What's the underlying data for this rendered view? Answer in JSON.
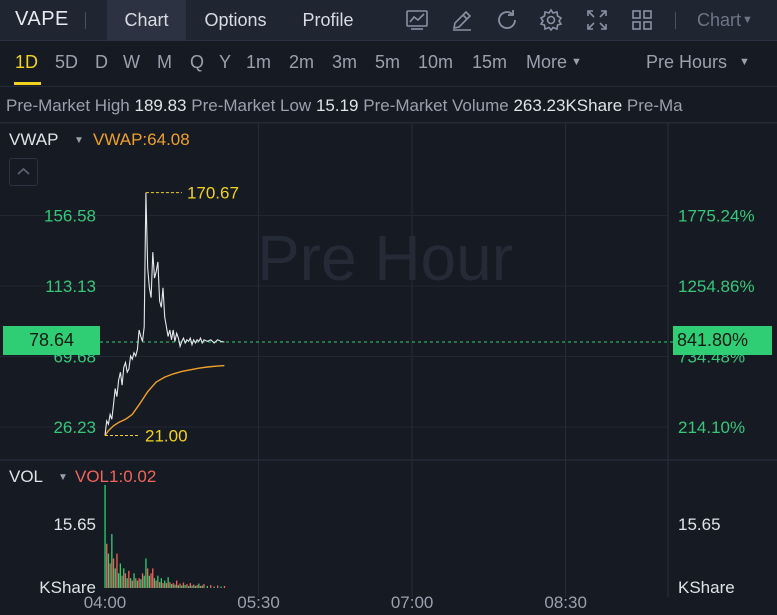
{
  "topbar": {
    "ticker": "VAPE",
    "nav": [
      "Chart",
      "Options",
      "Profile"
    ],
    "active_nav": "Chart",
    "tool_icons": [
      "line-chart-icon",
      "draw-icon",
      "refresh-icon",
      "settings-icon",
      "fullscreen-icon",
      "grid-layout-icon"
    ],
    "chart_menu_label": "Chart"
  },
  "periods": {
    "items": [
      "1D",
      "5D",
      "D",
      "W",
      "M",
      "Q",
      "Y",
      "1m",
      "2m",
      "3m",
      "5m",
      "10m",
      "15m",
      "More"
    ],
    "active": "1D",
    "session": "Pre Hours"
  },
  "marquee": [
    {
      "label": "Pre-Market High",
      "value": "189.83"
    },
    {
      "label": "Pre-Market Low",
      "value": "15.19"
    },
    {
      "label": "Pre-Market Volume",
      "value": "263.23KShare"
    },
    {
      "label": "Pre-Ma",
      "value": ""
    }
  ],
  "indicators": {
    "vwap_name": "VWAP",
    "vwap_value": "VWAP:64.08",
    "vol_name": "VOL",
    "vol_value": "VOL1:0.02"
  },
  "watermark": "Pre Hour",
  "colors": {
    "accent": "#f3d21f",
    "up": "#2fce74",
    "down": "#f0645a",
    "vwap": "#f0a02a",
    "price_line": "#e6e8ec"
  },
  "chart_data": {
    "type": "line",
    "price_axis": {
      "ticks": [
        "156.58",
        "113.13",
        "69.68",
        "26.23"
      ],
      "tick_values": [
        156.58,
        113.13,
        69.68,
        26.23
      ],
      "range": [
        9,
        192
      ]
    },
    "pct_axis": {
      "ticks": [
        "1775.24%",
        "1254.86%",
        "734.48%",
        "214.10%"
      ]
    },
    "current": {
      "price": "78.64",
      "price_value": 78.64,
      "pct": "841.80%"
    },
    "markers": {
      "high": "170.67",
      "high_value": 170.67,
      "low": "21.00",
      "low_value": 21.0
    },
    "x_axis": {
      "ticks": [
        "04:00",
        "05:30",
        "07:00",
        "08:30"
      ],
      "tick_minutes": [
        240,
        330,
        420,
        510
      ],
      "range_minutes": [
        240,
        570
      ]
    },
    "series": [
      {
        "name": "VWAP",
        "kind": "price",
        "minutes": [
          240,
          242,
          245,
          248,
          252,
          256,
          260,
          265,
          270,
          275,
          280,
          285,
          290,
          295,
          300,
          305,
          310
        ],
        "values": [
          21,
          24,
          27,
          29,
          31,
          34,
          40,
          48,
          54,
          57,
          59,
          60.5,
          61.5,
          62.5,
          63.2,
          63.7,
          64.1
        ]
      },
      {
        "kind": "price",
        "minutes": [
          240,
          241,
          242,
          243,
          244,
          245,
          246,
          247,
          248,
          249,
          250,
          251,
          252,
          253,
          254,
          255,
          256,
          257,
          258,
          259,
          260,
          261,
          262,
          263,
          264,
          265,
          266,
          267,
          268,
          269,
          270,
          271,
          272,
          273,
          274,
          275,
          276,
          277,
          278,
          279,
          280,
          281,
          282,
          283,
          284,
          285,
          286,
          287,
          288,
          289,
          290,
          291,
          292,
          293,
          294,
          295,
          296,
          297,
          298,
          300,
          302,
          304,
          306,
          308,
          310
        ],
        "values": [
          21,
          30,
          28,
          34,
          31,
          40,
          50,
          45,
          55,
          60,
          52,
          63,
          66,
          60,
          62,
          70,
          68,
          72,
          70,
          74,
          86,
          82,
          79,
          88,
          170.67,
          124,
          112,
          106,
          134,
          118,
          122,
          128,
          104,
          100,
          112,
          94,
          88,
          82,
          86,
          80,
          86,
          79,
          84,
          81,
          76,
          79,
          81,
          78,
          80,
          79,
          81,
          77,
          80,
          78,
          80,
          79,
          81,
          78,
          80,
          79,
          80,
          78,
          80,
          79,
          78.64
        ]
      }
    ],
    "volume": {
      "axis_ticks": [
        "15.65",
        "KShare"
      ],
      "range": [
        0,
        22
      ],
      "bars": [
        {
          "minute": 240,
          "value": 21,
          "dir": "up"
        },
        {
          "minute": 241,
          "value": 9,
          "dir": "down"
        },
        {
          "minute": 242,
          "value": 7,
          "dir": "up"
        },
        {
          "minute": 243,
          "value": 5,
          "dir": "down"
        },
        {
          "minute": 244,
          "value": 11,
          "dir": "up"
        },
        {
          "minute": 245,
          "value": 6,
          "dir": "down"
        },
        {
          "minute": 246,
          "value": 4,
          "dir": "up"
        },
        {
          "minute": 247,
          "value": 7,
          "dir": "down"
        },
        {
          "minute": 248,
          "value": 3,
          "dir": "up"
        },
        {
          "minute": 249,
          "value": 5,
          "dir": "up"
        },
        {
          "minute": 250,
          "value": 2.5,
          "dir": "down"
        },
        {
          "minute": 251,
          "value": 4,
          "dir": "up"
        },
        {
          "minute": 252,
          "value": 3,
          "dir": "down"
        },
        {
          "minute": 253,
          "value": 2,
          "dir": "up"
        },
        {
          "minute": 254,
          "value": 3.5,
          "dir": "down"
        },
        {
          "minute": 255,
          "value": 2,
          "dir": "up"
        },
        {
          "minute": 256,
          "value": 1.5,
          "dir": "down"
        },
        {
          "minute": 257,
          "value": 3,
          "dir": "up"
        },
        {
          "minute": 258,
          "value": 2,
          "dir": "down"
        },
        {
          "minute": 259,
          "value": 1.5,
          "dir": "up"
        },
        {
          "minute": 260,
          "value": 2,
          "dir": "down"
        },
        {
          "minute": 261,
          "value": 1.8,
          "dir": "up"
        },
        {
          "minute": 262,
          "value": 3,
          "dir": "down"
        },
        {
          "minute": 263,
          "value": 2.5,
          "dir": "up"
        },
        {
          "minute": 264,
          "value": 6,
          "dir": "up"
        },
        {
          "minute": 265,
          "value": 4,
          "dir": "down"
        },
        {
          "minute": 266,
          "value": 2.5,
          "dir": "up"
        },
        {
          "minute": 267,
          "value": 3,
          "dir": "down"
        },
        {
          "minute": 268,
          "value": 4,
          "dir": "down"
        },
        {
          "minute": 269,
          "value": 2,
          "dir": "up"
        },
        {
          "minute": 270,
          "value": 1.5,
          "dir": "down"
        },
        {
          "minute": 271,
          "value": 2.5,
          "dir": "up"
        },
        {
          "minute": 272,
          "value": 1.2,
          "dir": "down"
        },
        {
          "minute": 273,
          "value": 2,
          "dir": "up"
        },
        {
          "minute": 274,
          "value": 1,
          "dir": "down"
        },
        {
          "minute": 275,
          "value": 1.5,
          "dir": "up"
        },
        {
          "minute": 276,
          "value": 1,
          "dir": "down"
        },
        {
          "minute": 277,
          "value": 2.2,
          "dir": "up"
        },
        {
          "minute": 278,
          "value": 1.2,
          "dir": "down"
        },
        {
          "minute": 279,
          "value": 0.8,
          "dir": "up"
        },
        {
          "minute": 280,
          "value": 1,
          "dir": "down"
        },
        {
          "minute": 281,
          "value": 0.7,
          "dir": "up"
        },
        {
          "minute": 282,
          "value": 1.5,
          "dir": "down"
        },
        {
          "minute": 283,
          "value": 0.6,
          "dir": "up"
        },
        {
          "minute": 284,
          "value": 0.9,
          "dir": "down"
        },
        {
          "minute": 285,
          "value": 0.5,
          "dir": "up"
        },
        {
          "minute": 286,
          "value": 1.1,
          "dir": "down"
        },
        {
          "minute": 287,
          "value": 0.6,
          "dir": "up"
        },
        {
          "minute": 288,
          "value": 0.8,
          "dir": "down"
        },
        {
          "minute": 289,
          "value": 0.4,
          "dir": "up"
        },
        {
          "minute": 290,
          "value": 1,
          "dir": "down"
        },
        {
          "minute": 291,
          "value": 0.5,
          "dir": "up"
        },
        {
          "minute": 292,
          "value": 0.7,
          "dir": "down"
        },
        {
          "minute": 293,
          "value": 0.4,
          "dir": "up"
        },
        {
          "minute": 294,
          "value": 0.6,
          "dir": "down"
        },
        {
          "minute": 295,
          "value": 0.9,
          "dir": "up"
        },
        {
          "minute": 296,
          "value": 0.4,
          "dir": "down"
        },
        {
          "minute": 297,
          "value": 0.5,
          "dir": "up"
        },
        {
          "minute": 298,
          "value": 0.8,
          "dir": "down"
        },
        {
          "minute": 300,
          "value": 0.4,
          "dir": "up"
        },
        {
          "minute": 302,
          "value": 0.6,
          "dir": "down"
        },
        {
          "minute": 304,
          "value": 0.3,
          "dir": "up"
        },
        {
          "minute": 306,
          "value": 0.5,
          "dir": "down"
        },
        {
          "minute": 308,
          "value": 0.3,
          "dir": "up"
        },
        {
          "minute": 310,
          "value": 0.4,
          "dir": "down"
        }
      ]
    }
  }
}
